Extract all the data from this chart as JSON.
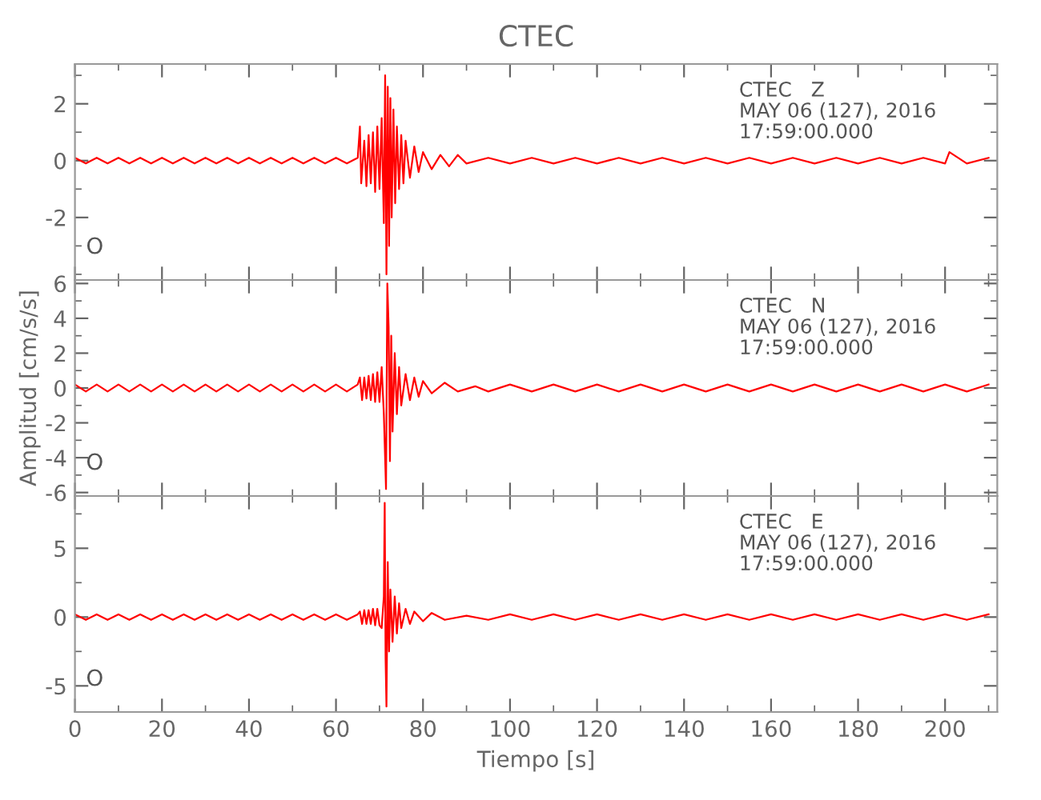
{
  "chart_data": [
    {
      "type": "line",
      "title": "CTEC",
      "xlim": [
        0,
        212
      ],
      "xticks": [
        0,
        20,
        40,
        60,
        80,
        100,
        120,
        140,
        160,
        180,
        200
      ],
      "ylim": [
        -4.2,
        3.4
      ],
      "yticks": [
        -2,
        0,
        2
      ],
      "tick_labels": "y",
      "grid": false,
      "annotations": [
        "CTEC   Z\nMAY 06 (127), 2016\n17:59:00.000",
        "O"
      ],
      "series": [
        {
          "color": "#ff0000",
          "x": [
            0,
            2.5,
            5,
            7.5,
            10,
            12.5,
            15,
            17.5,
            20,
            22.5,
            25,
            27.5,
            30,
            32.5,
            35,
            37.5,
            40,
            42.5,
            45,
            47.5,
            50,
            52.5,
            55,
            57.5,
            60,
            62.5,
            65,
            65.5,
            65.8,
            66.5,
            67,
            67.5,
            68,
            68.5,
            69,
            69.5,
            70,
            70.5,
            71,
            71.3,
            71.6,
            71.9,
            72.2,
            72.5,
            72.8,
            73.2,
            73.6,
            74,
            74.5,
            75,
            75.5,
            76,
            77,
            78,
            79,
            80,
            82,
            84,
            86,
            88,
            90,
            95,
            100,
            105,
            110,
            115,
            120,
            125,
            130,
            135,
            140,
            145,
            150,
            155,
            160,
            165,
            170,
            175,
            180,
            185,
            190,
            195,
            200,
            201,
            205,
            210
          ],
          "values": [
            0.1,
            -0.1,
            0.1,
            -0.1,
            0.1,
            -0.1,
            0.1,
            -0.1,
            0.1,
            -0.1,
            0.1,
            -0.1,
            0.1,
            -0.1,
            0.1,
            -0.1,
            0.1,
            -0.1,
            0.1,
            -0.1,
            0.1,
            -0.1,
            0.1,
            -0.1,
            0.1,
            -0.1,
            0.1,
            1.2,
            -0.8,
            0.7,
            -0.9,
            0.9,
            -0.8,
            1.0,
            -1.1,
            1.2,
            -1.0,
            1.5,
            -2.2,
            3.0,
            -4.0,
            2.6,
            -3.0,
            2.2,
            -2.0,
            1.8,
            -1.5,
            1.2,
            -1.0,
            0.9,
            -0.8,
            0.7,
            -0.6,
            0.5,
            -0.4,
            0.3,
            -0.3,
            0.2,
            -0.2,
            0.2,
            -0.1,
            0.1,
            -0.1,
            0.1,
            -0.1,
            0.1,
            -0.1,
            0.1,
            -0.1,
            0.1,
            -0.1,
            0.1,
            -0.1,
            0.1,
            -0.1,
            0.1,
            -0.1,
            0.1,
            -0.1,
            0.1,
            -0.1,
            0.1,
            -0.1,
            0.3,
            -0.1,
            0.1
          ]
        }
      ]
    },
    {
      "type": "line",
      "ylabel": "Amplitud [cm/s/s]",
      "xlim": [
        0,
        212
      ],
      "xticks": [
        0,
        20,
        40,
        60,
        80,
        100,
        120,
        140,
        160,
        180,
        200
      ],
      "ylim": [
        -6.2,
        6.2
      ],
      "yticks": [
        -6,
        -4,
        -2,
        0,
        2,
        4,
        6
      ],
      "tick_labels": "y",
      "grid": false,
      "annotations": [
        "CTEC   N\nMAY 06 (127), 2016\n17:59:00.000",
        "O"
      ],
      "series": [
        {
          "color": "#ff0000",
          "x": [
            0,
            2.5,
            5,
            7.5,
            10,
            12.5,
            15,
            17.5,
            20,
            22.5,
            25,
            27.5,
            30,
            32.5,
            35,
            37.5,
            40,
            42.5,
            45,
            47.5,
            50,
            52.5,
            55,
            57.5,
            60,
            62.5,
            65,
            65.5,
            66,
            66.5,
            67,
            67.5,
            68,
            68.5,
            69,
            69.5,
            70,
            70.5,
            71,
            71.5,
            71.8,
            72.1,
            72.4,
            72.7,
            73,
            73.5,
            74,
            74.5,
            75,
            76,
            77,
            78,
            79,
            80,
            82,
            85,
            88,
            92,
            95,
            100,
            105,
            110,
            115,
            120,
            125,
            130,
            135,
            140,
            145,
            150,
            155,
            160,
            165,
            170,
            175,
            180,
            185,
            190,
            195,
            200,
            205,
            210
          ],
          "values": [
            0.2,
            -0.2,
            0.2,
            -0.2,
            0.2,
            -0.2,
            0.2,
            -0.2,
            0.2,
            -0.2,
            0.2,
            -0.2,
            0.2,
            -0.2,
            0.2,
            -0.2,
            0.2,
            -0.2,
            0.2,
            -0.2,
            0.2,
            -0.2,
            0.2,
            -0.2,
            0.2,
            -0.2,
            0.2,
            0.6,
            -0.7,
            0.6,
            -0.6,
            0.7,
            -0.7,
            0.8,
            -0.8,
            0.9,
            -0.8,
            1.2,
            -1.5,
            -5.8,
            6.0,
            3.5,
            -4.2,
            3.0,
            -2.5,
            2.0,
            -1.5,
            1.2,
            -1.0,
            0.8,
            -0.7,
            0.6,
            -0.5,
            0.4,
            -0.3,
            0.3,
            -0.2,
            0.1,
            -0.2,
            0.2,
            -0.2,
            0.2,
            -0.2,
            0.2,
            -0.2,
            0.2,
            -0.2,
            0.2,
            -0.2,
            0.2,
            -0.2,
            0.2,
            -0.2,
            0.2,
            -0.2,
            0.2,
            -0.2,
            0.2,
            -0.2,
            0.2,
            -0.2,
            0.2
          ]
        }
      ]
    },
    {
      "type": "line",
      "xlabel": "Tiempo [s]",
      "xlim": [
        0,
        212
      ],
      "xticks": [
        0,
        20,
        40,
        60,
        80,
        100,
        120,
        140,
        160,
        180,
        200
      ],
      "ylim": [
        -6.9,
        8.8
      ],
      "yticks": [
        -5,
        0,
        5
      ],
      "grid": false,
      "annotations": [
        "CTEC   E\nMAY 06 (127), 2016\n17:59:00.000",
        "O"
      ],
      "series": [
        {
          "color": "#ff0000",
          "x": [
            0,
            2.5,
            5,
            7.5,
            10,
            12.5,
            15,
            17.5,
            20,
            22.5,
            25,
            27.5,
            30,
            32.5,
            35,
            37.5,
            40,
            42.5,
            45,
            47.5,
            50,
            52.5,
            55,
            57.5,
            60,
            62.5,
            65,
            65.5,
            66,
            66.5,
            67,
            67.5,
            68,
            68.5,
            69,
            69.5,
            70,
            70.5,
            71,
            71.2,
            71.4,
            71.6,
            71.9,
            72.2,
            72.5,
            73,
            73.5,
            74,
            74.5,
            75,
            76,
            77,
            78,
            80,
            82,
            85,
            90,
            95,
            100,
            105,
            110,
            115,
            120,
            125,
            130,
            135,
            140,
            145,
            150,
            155,
            160,
            165,
            170,
            175,
            180,
            185,
            190,
            195,
            200,
            205,
            210
          ],
          "values": [
            0.2,
            -0.2,
            0.2,
            -0.2,
            0.2,
            -0.2,
            0.2,
            -0.2,
            0.2,
            -0.2,
            0.2,
            -0.2,
            0.2,
            -0.2,
            0.2,
            -0.2,
            0.2,
            -0.2,
            0.2,
            -0.2,
            0.2,
            -0.2,
            0.2,
            -0.2,
            0.2,
            -0.2,
            0.2,
            0.4,
            -0.5,
            0.5,
            -0.5,
            0.5,
            -0.5,
            0.6,
            -0.6,
            0.6,
            -0.6,
            -0.8,
            1.5,
            8.3,
            -3.0,
            -6.5,
            4.0,
            -2.5,
            2.0,
            -1.8,
            1.5,
            -1.2,
            1.0,
            -0.8,
            0.6,
            -0.5,
            0.4,
            -0.3,
            0.3,
            -0.2,
            0.1,
            -0.2,
            0.2,
            -0.2,
            0.2,
            -0.2,
            0.2,
            -0.2,
            0.2,
            -0.2,
            0.2,
            -0.2,
            0.2,
            -0.2,
            0.2,
            -0.2,
            0.2,
            -0.2,
            0.2,
            -0.2,
            0.2,
            -0.2,
            0.2,
            -0.2,
            0.2
          ]
        }
      ]
    }
  ]
}
